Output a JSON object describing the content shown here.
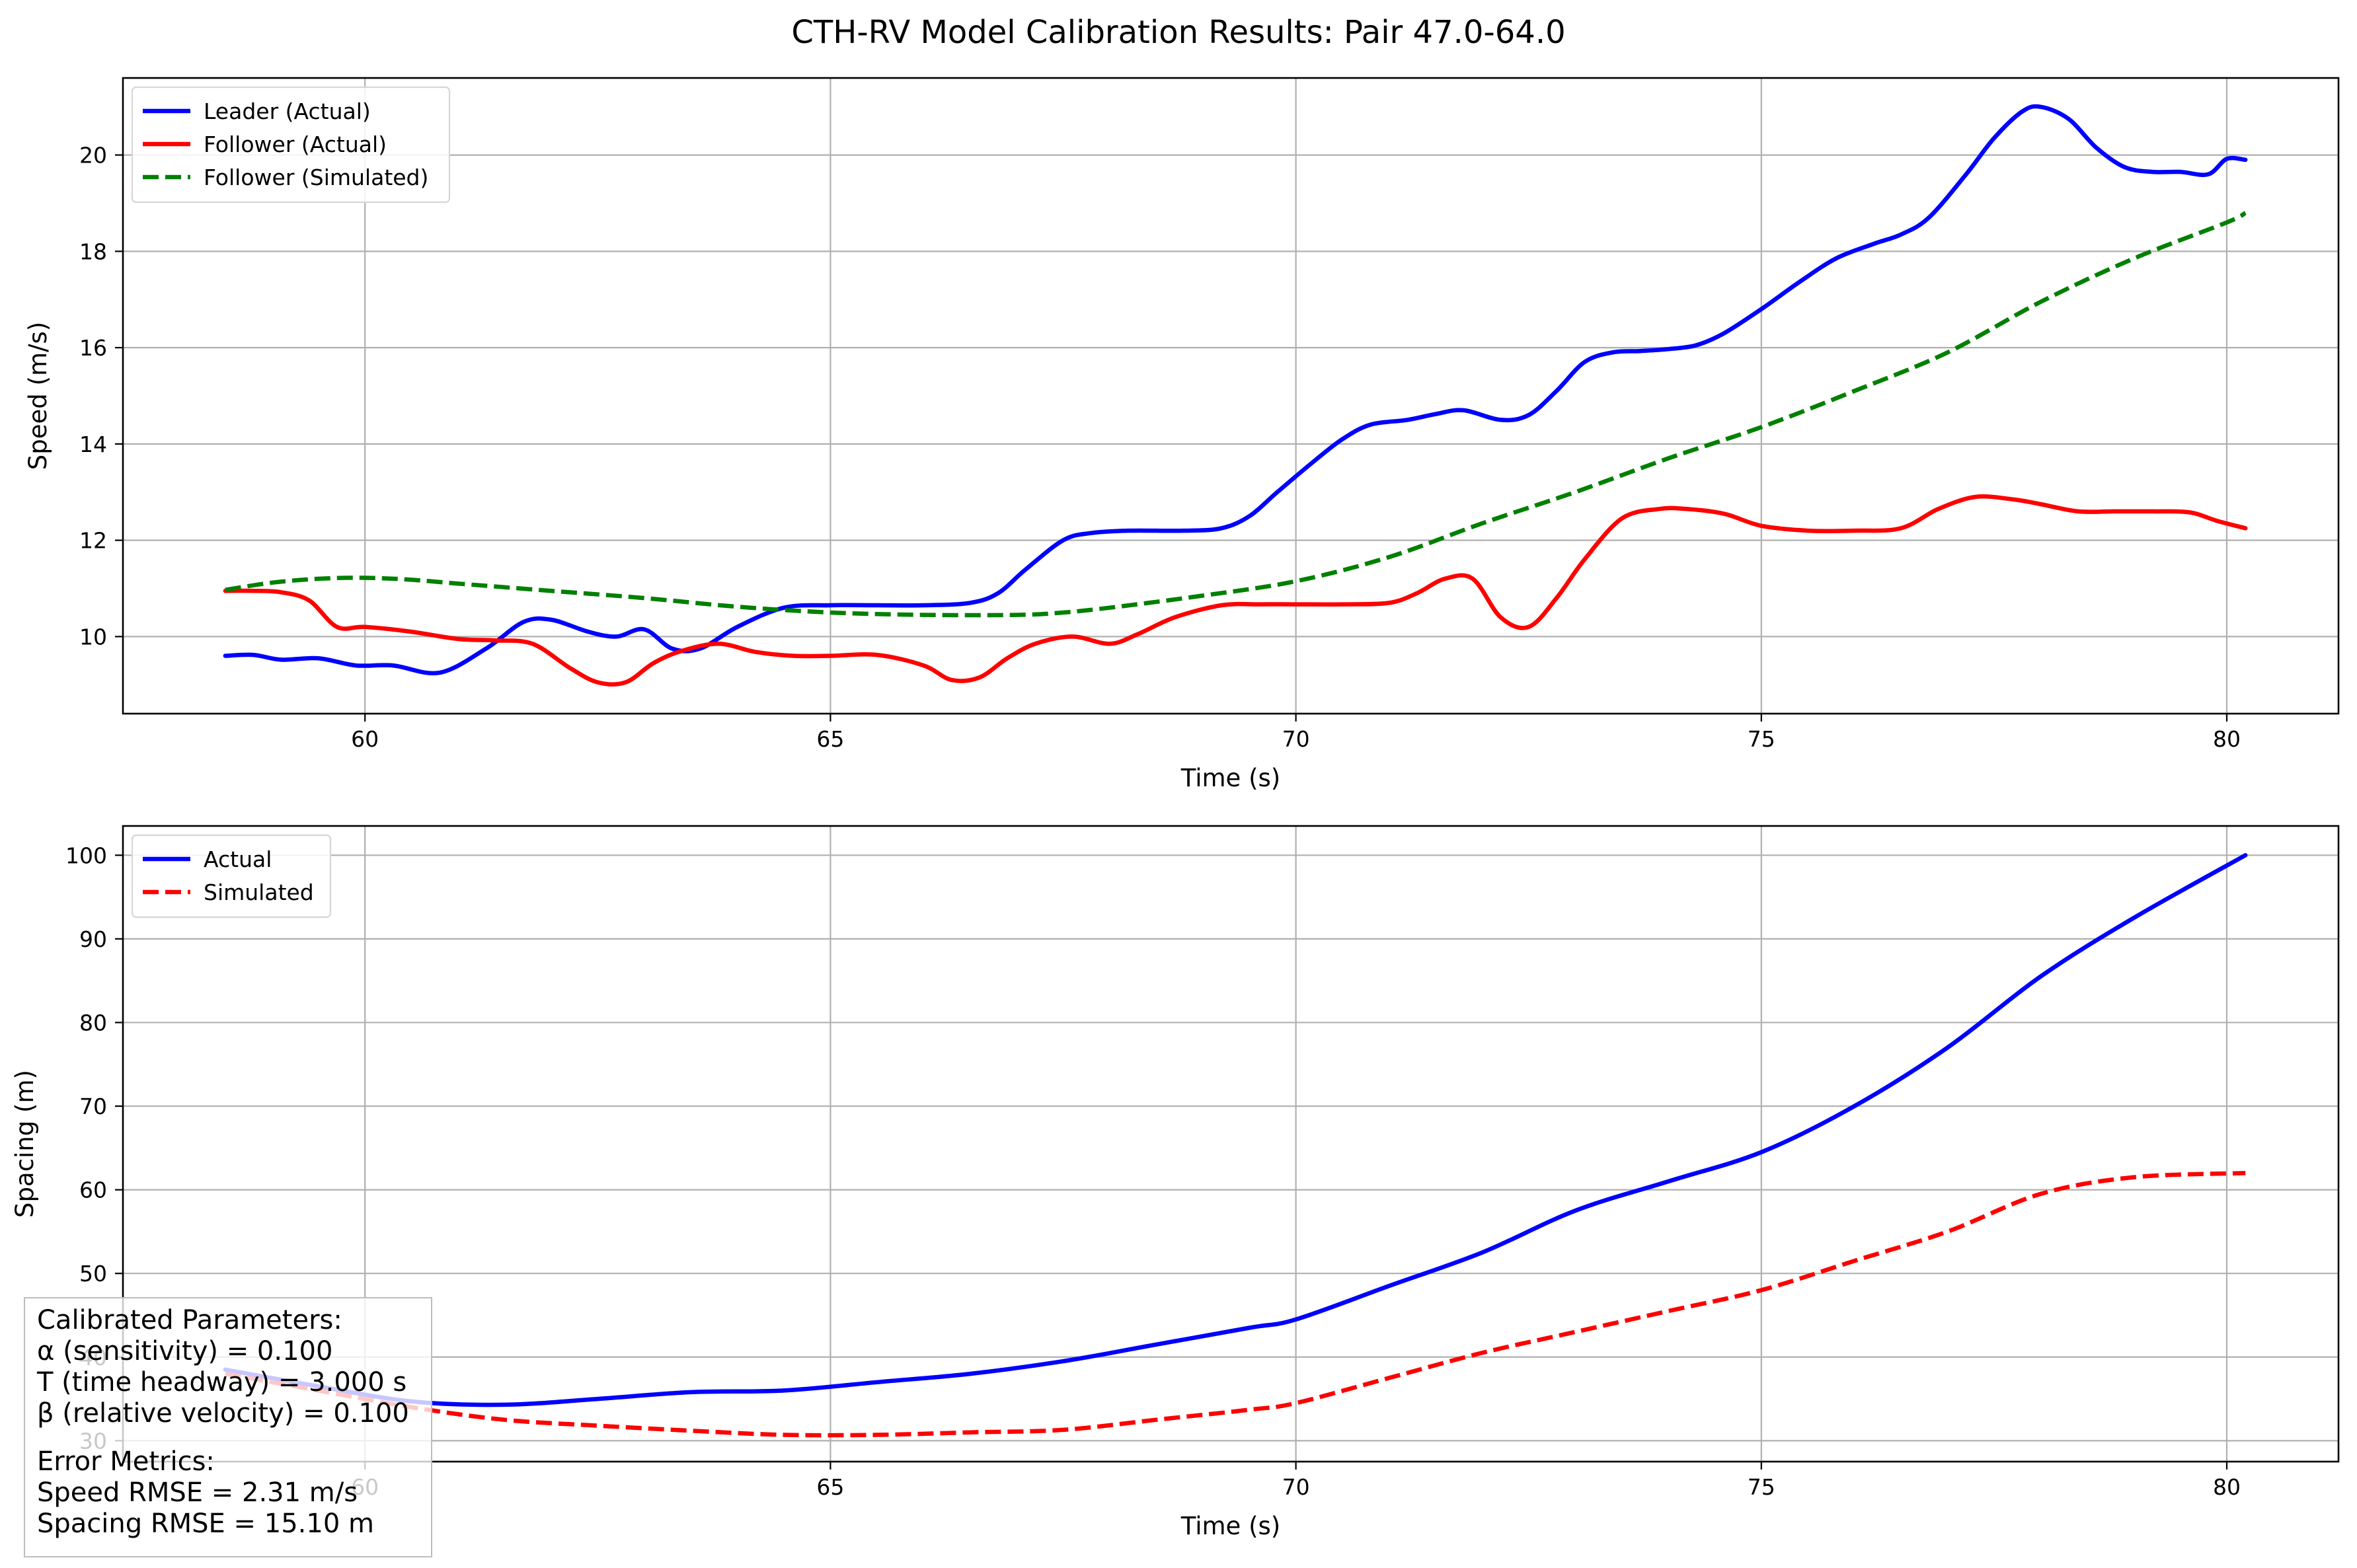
{
  "figure": {
    "title": "CTH-RV Model Calibration Results: Pair 47.0-64.0"
  },
  "params_box": {
    "heading": "Calibrated Parameters:",
    "alpha": "α (sensitivity) = 0.100",
    "T": "T (time headway) = 3.000 s",
    "beta": "β (relative velocity) = 0.100",
    "error_heading": "Error Metrics:",
    "speed_rmse": "Speed RMSE = 2.31 m/s",
    "spacing_rmse": "Spacing RMSE = 15.10 m"
  },
  "colors": {
    "leader": "#0000ff",
    "follower": "#ff0000",
    "simulated_green": "#008000",
    "grid": "#b0b0b0"
  },
  "chart_data": [
    {
      "type": "line",
      "title": "",
      "xlabel": "Time (s)",
      "ylabel": "Speed (m/s)",
      "xlim": [
        57.4,
        81.2
      ],
      "ylim": [
        8.4,
        21.6
      ],
      "xticks": [
        60,
        65,
        70,
        75,
        80
      ],
      "yticks": [
        10,
        12,
        14,
        16,
        18,
        20
      ],
      "grid": true,
      "legend_position": "top-left",
      "series": [
        {
          "name": "Leader (Actual)",
          "color": "#0000ff",
          "dash": "solid",
          "x": [
            58.5,
            58.8,
            59.1,
            59.5,
            59.9,
            60.3,
            60.8,
            61.3,
            61.7,
            62.0,
            62.4,
            62.7,
            63.0,
            63.3,
            63.6,
            64.0,
            64.5,
            65.0,
            65.5,
            66.0,
            66.5,
            66.8,
            67.1,
            67.5,
            67.8,
            68.2,
            68.8,
            69.2,
            69.5,
            69.8,
            70.2,
            70.5,
            70.8,
            71.2,
            71.5,
            71.8,
            72.2,
            72.5,
            72.8,
            73.1,
            73.4,
            73.7,
            74.0,
            74.3,
            74.6,
            75.0,
            75.4,
            75.8,
            76.2,
            76.5,
            76.8,
            77.2,
            77.5,
            77.8,
            78.0,
            78.3,
            78.6,
            78.9,
            79.2,
            79.5,
            79.8,
            80.0,
            80.2
          ],
          "y": [
            9.6,
            9.62,
            9.52,
            9.55,
            9.4,
            9.4,
            9.25,
            9.75,
            10.3,
            10.35,
            10.1,
            10.0,
            10.15,
            9.75,
            9.75,
            10.2,
            10.6,
            10.65,
            10.65,
            10.65,
            10.7,
            10.9,
            11.4,
            12.0,
            12.15,
            12.2,
            12.2,
            12.25,
            12.5,
            13.0,
            13.65,
            14.1,
            14.4,
            14.5,
            14.62,
            14.7,
            14.5,
            14.6,
            15.1,
            15.7,
            15.9,
            15.93,
            15.97,
            16.05,
            16.3,
            16.8,
            17.35,
            17.85,
            18.15,
            18.35,
            18.7,
            19.6,
            20.35,
            20.9,
            21.0,
            20.75,
            20.15,
            19.75,
            19.65,
            19.65,
            19.6,
            19.92,
            19.9
          ]
        },
        {
          "name": "Follower (Actual)",
          "color": "#ff0000",
          "dash": "solid",
          "x": [
            58.5,
            58.8,
            59.1,
            59.4,
            59.7,
            60.0,
            60.5,
            61.0,
            61.4,
            61.8,
            62.2,
            62.5,
            62.8,
            63.1,
            63.4,
            63.8,
            64.2,
            64.6,
            65.0,
            65.5,
            66.0,
            66.3,
            66.6,
            66.9,
            67.2,
            67.6,
            68.0,
            68.3,
            68.7,
            69.2,
            69.6,
            70.0,
            70.5,
            71.0,
            71.3,
            71.6,
            71.9,
            72.2,
            72.5,
            72.8,
            73.1,
            73.5,
            73.9,
            74.2,
            74.6,
            75.0,
            75.5,
            76.0,
            76.5,
            76.9,
            77.3,
            77.7,
            78.0,
            78.4,
            78.8,
            79.2,
            79.6,
            79.9,
            80.2
          ],
          "y": [
            10.95,
            10.95,
            10.92,
            10.75,
            10.2,
            10.2,
            10.1,
            9.95,
            9.92,
            9.85,
            9.35,
            9.05,
            9.05,
            9.45,
            9.7,
            9.85,
            9.68,
            9.6,
            9.6,
            9.62,
            9.4,
            9.1,
            9.15,
            9.55,
            9.85,
            10.0,
            9.85,
            10.05,
            10.4,
            10.65,
            10.67,
            10.67,
            10.67,
            10.7,
            10.9,
            11.2,
            11.2,
            10.4,
            10.2,
            10.8,
            11.6,
            12.45,
            12.65,
            12.65,
            12.55,
            12.3,
            12.2,
            12.2,
            12.25,
            12.65,
            12.9,
            12.85,
            12.75,
            12.6,
            12.6,
            12.6,
            12.58,
            12.4,
            12.25
          ]
        },
        {
          "name": "Follower (Simulated)",
          "color": "#008000",
          "dash": "dashed",
          "x": [
            58.5,
            59.0,
            59.5,
            60.0,
            60.5,
            61.0,
            62.0,
            63.0,
            64.0,
            65.0,
            66.0,
            67.0,
            67.5,
            68.0,
            69.0,
            70.0,
            71.0,
            72.0,
            73.0,
            74.0,
            75.0,
            76.0,
            77.0,
            78.0,
            79.0,
            80.0,
            80.2
          ],
          "y": [
            10.97,
            11.12,
            11.2,
            11.22,
            11.18,
            11.1,
            10.95,
            10.8,
            10.62,
            10.5,
            10.45,
            10.45,
            10.5,
            10.6,
            10.85,
            11.15,
            11.65,
            12.35,
            13.0,
            13.7,
            14.35,
            15.1,
            15.9,
            16.95,
            17.85,
            18.6,
            18.8
          ]
        }
      ]
    },
    {
      "type": "line",
      "title": "",
      "xlabel": "Time (s)",
      "ylabel": "Spacing (m)",
      "xlim": [
        57.4,
        81.2
      ],
      "ylim": [
        27.5,
        103.5
      ],
      "xticks": [
        60,
        65,
        70,
        75,
        80
      ],
      "yticks": [
        30,
        40,
        50,
        60,
        70,
        80,
        90,
        100
      ],
      "grid": true,
      "legend_position": "top-left",
      "series": [
        {
          "name": "Actual",
          "color": "#0000ff",
          "dash": "solid",
          "x": [
            58.5,
            59.5,
            60.5,
            61.5,
            62.5,
            63.5,
            64.5,
            65.5,
            66.5,
            67.5,
            68.5,
            69.5,
            70.0,
            71.0,
            72.0,
            73.0,
            74.0,
            75.0,
            76.0,
            77.0,
            78.0,
            79.0,
            80.2
          ],
          "y": [
            38.5,
            36.5,
            34.7,
            34.3,
            35.0,
            35.8,
            36.0,
            37.0,
            38.0,
            39.5,
            41.5,
            43.5,
            44.5,
            48.5,
            52.5,
            57.5,
            61.0,
            64.5,
            70.0,
            77.0,
            85.5,
            92.5,
            100.0
          ]
        },
        {
          "name": "Simulated",
          "color": "#ff0000",
          "dash": "dashed",
          "x": [
            58.5,
            59.5,
            60.5,
            61.5,
            62.5,
            63.5,
            64.5,
            65.5,
            66.5,
            67.5,
            68.5,
            69.5,
            70.0,
            71.0,
            72.0,
            73.0,
            74.0,
            75.0,
            76.0,
            77.0,
            78.0,
            79.0,
            80.2
          ],
          "y": [
            38.0,
            36.0,
            34.0,
            32.5,
            31.8,
            31.2,
            30.7,
            30.7,
            31.0,
            31.3,
            32.5,
            33.7,
            34.5,
            37.5,
            40.5,
            43.0,
            45.5,
            48.0,
            51.5,
            55.0,
            59.5,
            61.5,
            62.0
          ]
        }
      ]
    }
  ]
}
